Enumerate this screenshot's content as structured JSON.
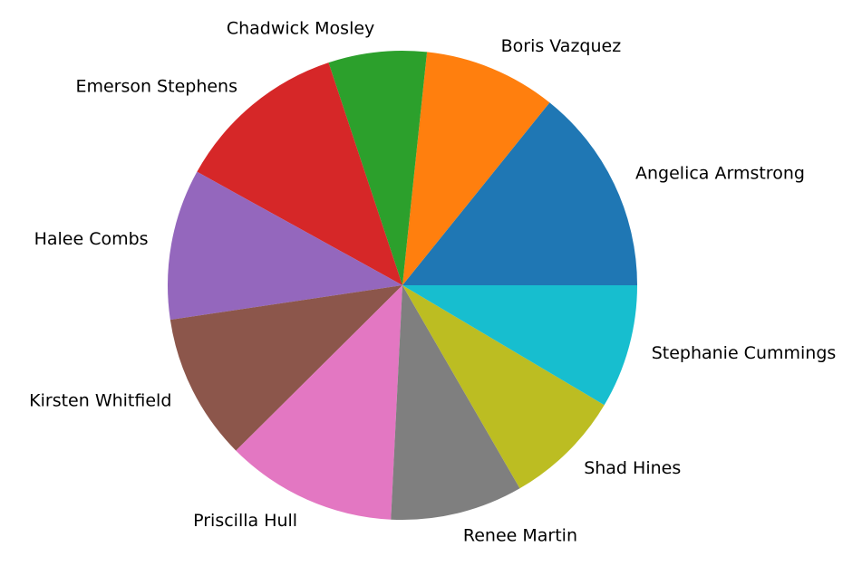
{
  "chart_data": {
    "type": "pie",
    "labels": [
      "Angelica Armstrong",
      "Boris Vazquez",
      "Chadwick Mosley",
      "Emerson Stephens",
      "Halee Combs",
      "Kirsten Whitfield",
      "Priscilla Hull",
      "Renee Martin",
      "Shad Hines",
      "Stephanie Cummings"
    ],
    "values": [
      14.5,
      9.3,
      6.9,
      12.1,
      10.6,
      10.3,
      12.0,
      9.3,
      8.3,
      8.7
    ],
    "colors": [
      "#1f77b4",
      "#ff7f0e",
      "#2ca02c",
      "#d62728",
      "#9467bd",
      "#8c564b",
      "#e377c2",
      "#7f7f7f",
      "#bcbd22",
      "#17becf"
    ],
    "start_angle_deg": 0,
    "direction": "counterclockwise",
    "legend": "none"
  }
}
